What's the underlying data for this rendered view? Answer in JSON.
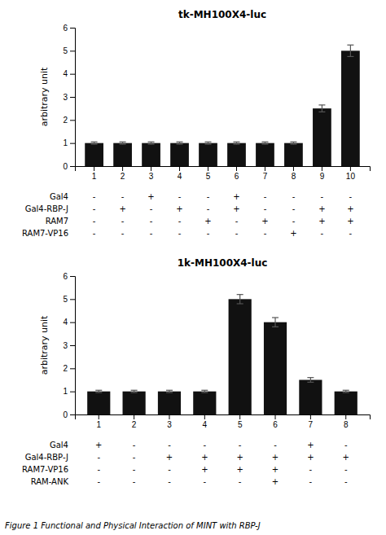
{
  "title": "Figure 1  Functional and Physical Interaction of MINT with RBP-J",
  "chart_data": [
    {
      "type": "bar",
      "title": "tk-MH100X4-luc",
      "y_label": "arbitrary unit",
      "categories": [
        "1",
        "2",
        "3",
        "4",
        "5",
        "6",
        "7",
        "8",
        "9",
        "10"
      ],
      "values": [
        1.0,
        1.0,
        1.0,
        1.0,
        1.0,
        1.0,
        1.0,
        1.0,
        2.5,
        5.0
      ],
      "errors": [
        0.05,
        0.05,
        0.05,
        0.05,
        0.05,
        0.05,
        0.05,
        0.05,
        0.15,
        0.25
      ],
      "color": "#111111",
      "ylim": [
        0,
        6
      ],
      "yticks": [
        0,
        1,
        2,
        3,
        4,
        5,
        6
      ],
      "grid": false,
      "conditions": [
        {
          "label": "Gal4",
          "values": [
            "-",
            "-",
            "+",
            "-",
            "-",
            "+",
            "-",
            "-",
            "-",
            "-"
          ]
        },
        {
          "label": "Gal4-RBP-J",
          "values": [
            "-",
            "+",
            "-",
            "+",
            "-",
            "+",
            "-",
            "-",
            "+",
            "+"
          ]
        },
        {
          "label": "RAM7",
          "values": [
            "-",
            "-",
            "-",
            "-",
            "+",
            "-",
            "+",
            "-",
            "+",
            "+"
          ]
        },
        {
          "label": "RAM7-VP16",
          "values": [
            "-",
            "-",
            "-",
            "-",
            "-",
            "-",
            "-",
            "+",
            "-",
            "-"
          ]
        }
      ]
    },
    {
      "type": "bar",
      "title": "1k-MH100X4-luc",
      "y_label": "arbitrary unit",
      "categories": [
        "1",
        "2",
        "3",
        "4",
        "5",
        "6",
        "7",
        "8"
      ],
      "values": [
        1.0,
        1.0,
        1.0,
        1.0,
        5.0,
        4.0,
        1.5,
        1.0
      ],
      "errors": [
        0.05,
        0.05,
        0.05,
        0.05,
        0.2,
        0.2,
        0.1,
        0.05
      ],
      "color": "#111111",
      "ylim": [
        0,
        6
      ],
      "yticks": [
        0,
        1,
        2,
        3,
        4,
        5,
        6
      ],
      "grid": false,
      "conditions": [
        {
          "label": "Gal4",
          "values": [
            "+",
            "-",
            "-",
            "-",
            "-",
            "-",
            "+",
            "-"
          ]
        },
        {
          "label": "Gal4-RBP-J",
          "values": [
            "-",
            "-",
            "+",
            "+",
            "+",
            "+",
            "+",
            "+"
          ]
        },
        {
          "label": "RAM7-VP16",
          "values": [
            "-",
            "-",
            "-",
            "+",
            "+",
            "+",
            "-",
            "-"
          ]
        },
        {
          "label": "RAM-ANK",
          "values": [
            "-",
            "-",
            "-",
            "-",
            "-",
            "+",
            "-",
            "-"
          ]
        }
      ]
    }
  ]
}
